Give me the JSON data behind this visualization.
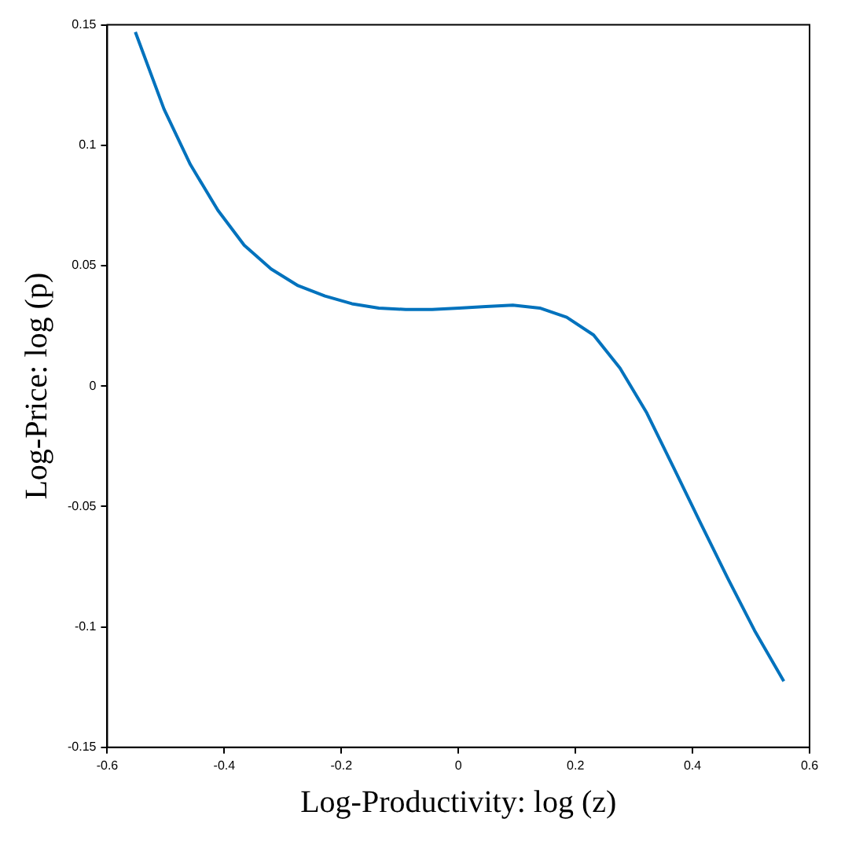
{
  "chart_data": {
    "type": "line",
    "xlabel": "Log-Productivity: log (z)",
    "ylabel": "Log-Price: log (p)",
    "x": [
      -0.552,
      -0.503,
      -0.458,
      -0.411,
      -0.366,
      -0.32,
      -0.274,
      -0.228,
      -0.182,
      -0.136,
      -0.09,
      -0.045,
      0.001,
      0.047,
      0.093,
      0.139,
      0.185,
      0.231,
      0.276,
      0.322,
      0.368,
      0.414,
      0.46,
      0.506,
      0.556
    ],
    "series": [
      {
        "color": "#0072bd",
        "values": [
          0.147,
          0.115,
          0.092,
          0.073,
          0.0585,
          0.0486,
          0.0417,
          0.0374,
          0.0342,
          0.0324,
          0.0318,
          0.0318,
          0.0324,
          0.033,
          0.0336,
          0.0324,
          0.0286,
          0.0212,
          0.0075,
          -0.0112,
          -0.034,
          -0.057,
          -0.0797,
          -0.1015,
          -0.1226
        ]
      }
    ],
    "xlim": [
      -0.6,
      0.6
    ],
    "xticks": [
      -0.6,
      -0.4,
      -0.2,
      0,
      0.2,
      0.4,
      0.6
    ],
    "ylim": [
      -0.15,
      0.15
    ],
    "yticks": [
      -0.15,
      -0.1,
      -0.05,
      0,
      0.05,
      0.1,
      0.15
    ],
    "grid": false,
    "legend": false,
    "marker": "none",
    "line_style": "solid"
  }
}
